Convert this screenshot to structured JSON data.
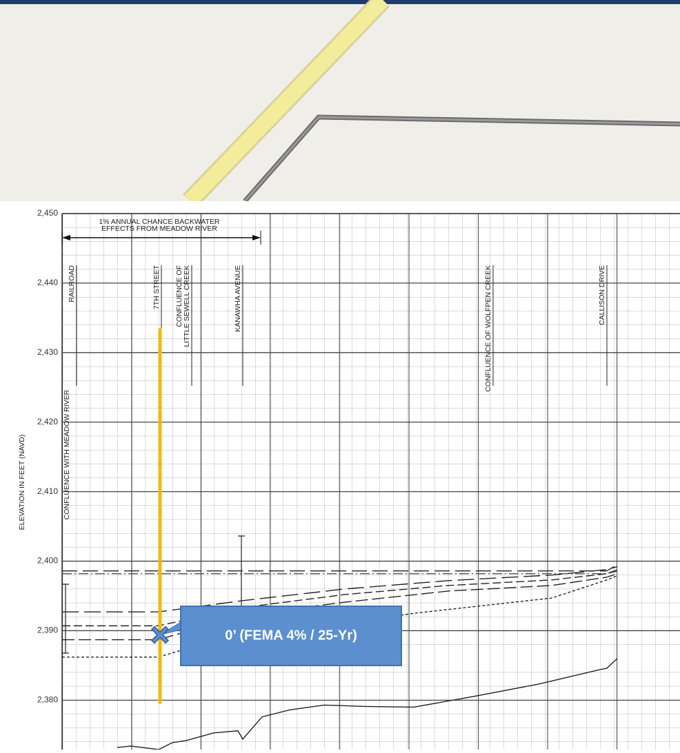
{
  "chart_data": {
    "type": "line",
    "ylabel": "ELEVATION IN FEET (NAVD)",
    "xlim": [
      0,
      8.96
    ],
    "ylim": [
      2372.9,
      2450
    ],
    "yticks": [
      {
        "value": 2380,
        "label": "2,380"
      },
      {
        "value": 2390,
        "label": "2,390"
      },
      {
        "value": 2400,
        "label": "2,400"
      },
      {
        "value": 2410,
        "label": "2,410"
      },
      {
        "value": 2420,
        "label": "2,420"
      },
      {
        "value": 2430,
        "label": "2,430"
      },
      {
        "value": 2440,
        "label": "2,440"
      },
      {
        "value": 2450,
        "label": "2,450"
      }
    ],
    "grid": true,
    "series": [
      {
        "color": "#222222",
        "dash": "22 8",
        "x": [
          0,
          7.9,
          8.05
        ],
        "values": [
          2398.6,
          2398.6,
          2399.5
        ]
      },
      {
        "color": "#555555",
        "dash": "14 4 2 4",
        "x": [
          0,
          7.9,
          8.05
        ],
        "values": [
          2398.2,
          2398.2,
          2398.8
        ]
      },
      {
        "color": "#222222",
        "dash": "24 8",
        "x": [
          0,
          1.4,
          2.6,
          4.1,
          5.6,
          7.1,
          7.9,
          8.05
        ],
        "values": [
          2392.7,
          2392.7,
          2394.3,
          2396.0,
          2397.2,
          2398.0,
          2398.8,
          2399.2
        ]
      },
      {
        "color": "#222222",
        "dash": "12 5",
        "x": [
          0,
          1.4,
          2.6,
          4.1,
          5.6,
          7.1,
          7.9,
          8.05
        ],
        "values": [
          2390.7,
          2390.7,
          2393.3,
          2395.2,
          2396.5,
          2397.3,
          2398.2,
          2398.6
        ]
      },
      {
        "color": "#222222",
        "dash": "18 6",
        "x": [
          0,
          1.4,
          2.6,
          4.1,
          5.6,
          7.1,
          7.9,
          8.05
        ],
        "values": [
          2388.7,
          2388.7,
          2392.2,
          2394.1,
          2395.7,
          2396.5,
          2397.7,
          2398.2
        ]
      },
      {
        "color": "#222222",
        "dash": "4 3",
        "x": [
          0,
          1.4,
          2.1,
          3.6,
          5.1,
          7.1,
          7.9,
          8.05
        ],
        "values": [
          2386.2,
          2386.2,
          2388.3,
          2390.3,
          2392.5,
          2394.7,
          2397.3,
          2397.9
        ]
      },
      {
        "color": "#222222",
        "dash": "none",
        "x": [
          0.8,
          1.0,
          1.4,
          1.6,
          1.8,
          2.2,
          2.55,
          2.62,
          2.9,
          3.3,
          3.8,
          4.4,
          5.1,
          6.0,
          6.9,
          7.8,
          7.9,
          8.05
        ],
        "values": [
          2373.2,
          2373.4,
          2372.9,
          2373.9,
          2374.2,
          2375.3,
          2375.6,
          2374.4,
          2377.6,
          2378.6,
          2379.3,
          2379.1,
          2379.0,
          2380.6,
          2382.3,
          2384.4,
          2384.6,
          2386.0
        ]
      }
    ],
    "backwater": {
      "lines": [
        "1% ANNUAL CHANCE BACKWATER",
        "EFFECTS FROM MEADOW RIVER"
      ],
      "x": [
        0,
        2.88
      ]
    },
    "annotations": [
      {
        "lines": [
          "CONFLUENCE WITH MEADOW RIVER"
        ],
        "x": 0.07
      },
      {
        "lines": [
          "RAILROAD"
        ],
        "x": 0.14
      },
      {
        "lines": [
          "7TH STREET"
        ],
        "x": 1.37
      },
      {
        "lines": [
          "CONFLUENCE OF",
          "LITTLE SEWELL CREEK"
        ],
        "x": 1.7
      },
      {
        "lines": [
          "KANAWHA AVENUE"
        ],
        "x": 2.55
      },
      {
        "lines": [
          "CONFLUENCE OF WOLFPEN CREEK"
        ],
        "x": 6.18
      },
      {
        "lines": [
          "CALLISON DRIVE"
        ],
        "x": 7.83
      }
    ],
    "highlight": {
      "x": 1.42,
      "y": 2389.4,
      "y_range": [
        2379.5,
        2433.5
      ],
      "label": "0’ (FEMA 4% / 25-Yr)",
      "color": "#f5b800",
      "marker_color": "#5b8fd0"
    }
  }
}
